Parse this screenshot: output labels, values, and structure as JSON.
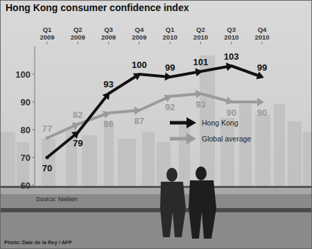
{
  "chart_data": {
    "type": "line",
    "title": "Hong Kong consumer confidence index",
    "categories": [
      "Q1 2009",
      "Q2 2009",
      "Q3 2009",
      "Q4 2009",
      "Q1 2010",
      "Q2 2010",
      "Q3 2010",
      "Q4 2010"
    ],
    "series": [
      {
        "name": "Hong Kong",
        "color": "#111111",
        "marker": "arrow",
        "values": [
          70,
          79,
          93,
          100,
          99,
          101,
          103,
          99
        ]
      },
      {
        "name": "Global average",
        "color": "#9a9a9a",
        "marker": "arrow",
        "values": [
          77,
          82,
          86,
          87,
          92,
          93,
          90,
          90
        ]
      }
    ],
    "ylim": [
      60,
      110
    ],
    "yticks": [
      60,
      70,
      80,
      90,
      100
    ],
    "grid": false,
    "data_labels": true,
    "legend": "right",
    "source": "Source: Nielsen",
    "photo_credit": "Photo: Dale de la Rey / AFP"
  }
}
